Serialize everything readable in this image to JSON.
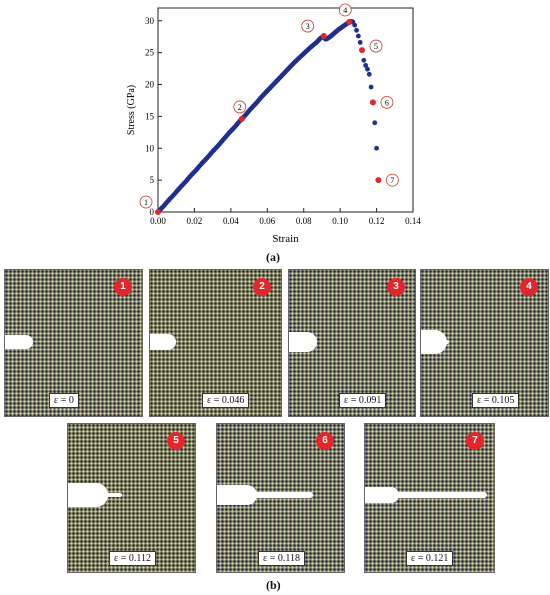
{
  "figure_labels": {
    "a": "(a)",
    "b": "(b)"
  },
  "chart_data": {
    "type": "scatter",
    "xlabel": "Strain",
    "ylabel": "Stress (GPa)",
    "xlim": [
      0,
      0.14
    ],
    "ylim": [
      0,
      32
    ],
    "xticks": [
      "0.00",
      "0.02",
      "0.04",
      "0.06",
      "0.08",
      "0.10",
      "0.12",
      "0.14"
    ],
    "yticks": [
      "0",
      "5",
      "10",
      "15",
      "20",
      "25",
      "30"
    ],
    "series_color": "#1f2f8f",
    "marker_color": "#e3262b",
    "points": [
      [
        0.0,
        0.0
      ],
      [
        0.003,
        0.9
      ],
      [
        0.006,
        1.9
      ],
      [
        0.009,
        2.8
      ],
      [
        0.012,
        3.8
      ],
      [
        0.015,
        4.7
      ],
      [
        0.018,
        5.7
      ],
      [
        0.021,
        6.6
      ],
      [
        0.024,
        7.6
      ],
      [
        0.027,
        8.5
      ],
      [
        0.03,
        9.5
      ],
      [
        0.033,
        10.4
      ],
      [
        0.036,
        11.4
      ],
      [
        0.039,
        12.4
      ],
      [
        0.042,
        13.3
      ],
      [
        0.045,
        14.3
      ],
      [
        0.048,
        15.2
      ],
      [
        0.051,
        16.2
      ],
      [
        0.054,
        17.1
      ],
      [
        0.057,
        18.1
      ],
      [
        0.06,
        19.0
      ],
      [
        0.063,
        19.9
      ],
      [
        0.066,
        20.8
      ],
      [
        0.069,
        21.7
      ],
      [
        0.072,
        22.6
      ],
      [
        0.075,
        23.5
      ],
      [
        0.078,
        24.3
      ],
      [
        0.081,
        25.1
      ],
      [
        0.084,
        25.9
      ],
      [
        0.087,
        26.6
      ],
      [
        0.089,
        27.2
      ],
      [
        0.091,
        27.6
      ],
      [
        0.092,
        27.1
      ],
      [
        0.093,
        27.2
      ],
      [
        0.095,
        27.6
      ],
      [
        0.097,
        28.1
      ],
      [
        0.099,
        28.6
      ],
      [
        0.101,
        29.0
      ],
      [
        0.103,
        29.4
      ],
      [
        0.105,
        29.8
      ],
      [
        0.106,
        29.9
      ],
      [
        0.107,
        29.8
      ],
      [
        0.108,
        29.3
      ],
      [
        0.109,
        28.5
      ],
      [
        0.11,
        27.6
      ],
      [
        0.111,
        26.6
      ],
      [
        0.112,
        25.4
      ],
      [
        0.113,
        23.8
      ],
      [
        0.114,
        23.0
      ],
      [
        0.115,
        22.4
      ],
      [
        0.116,
        21.6
      ],
      [
        0.117,
        19.6
      ],
      [
        0.118,
        17.2
      ],
      [
        0.119,
        14.0
      ],
      [
        0.12,
        10.0
      ],
      [
        0.121,
        5.0
      ]
    ],
    "markers": [
      {
        "label": "1",
        "x": 0.0,
        "y": 0.0
      },
      {
        "label": "2",
        "x": 0.046,
        "y": 14.6
      },
      {
        "label": "3",
        "x": 0.091,
        "y": 27.6
      },
      {
        "label": "4",
        "x": 0.105,
        "y": 29.8
      },
      {
        "label": "5",
        "x": 0.112,
        "y": 25.4
      },
      {
        "label": "6",
        "x": 0.118,
        "y": 17.2
      },
      {
        "label": "7",
        "x": 0.121,
        "y": 5.0
      }
    ]
  },
  "snapshots": [
    {
      "num": "1",
      "strain": "ε = 0"
    },
    {
      "num": "2",
      "strain": "ε = 0.046"
    },
    {
      "num": "3",
      "strain": "ε = 0.091"
    },
    {
      "num": "4",
      "strain": "ε = 0.105"
    },
    {
      "num": "5",
      "strain": "ε = 0.112"
    },
    {
      "num": "6",
      "strain": "ε = 0.118"
    },
    {
      "num": "7",
      "strain": "ε = 0.121"
    }
  ]
}
